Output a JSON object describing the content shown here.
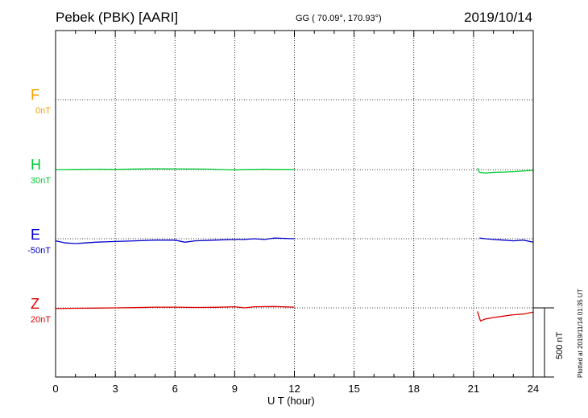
{
  "header": {
    "station": "Pebek (PBK)  [AARI]",
    "coords": "GG ( 70.09°, 170.93°)",
    "date": "2019/10/14"
  },
  "footer_note": "Plotted at 2019/11/14 01:35 UT",
  "chart_data": {
    "type": "line",
    "xlabel": "U T (hour)",
    "xlim": [
      0,
      24
    ],
    "x_ticks": [
      "0",
      "3",
      "6",
      "9",
      "12",
      "15",
      "18",
      "21",
      "24"
    ],
    "scale_bar_label": "500 nT",
    "grid": true,
    "series": [
      {
        "name": "F",
        "baseline": "0nT",
        "color": "#f5a000",
        "segments": []
      },
      {
        "name": "H",
        "baseline": "30nT",
        "color": "#00cc33",
        "segments": [
          {
            "t": [
              0,
              1,
              2,
              3,
              4,
              5,
              6,
              7,
              8,
              8.5,
              9,
              9.5,
              10,
              10.5,
              11,
              12
            ],
            "v": [
              0,
              2,
              3,
              2,
              4,
              6,
              5,
              4,
              3,
              0,
              -2,
              1,
              2,
              3,
              2,
              1
            ]
          },
          {
            "t": [
              21.2,
              21.3,
              21.6,
              22,
              22.5,
              23,
              23.5,
              24
            ],
            "v": [
              10,
              -20,
              -25,
              -20,
              -18,
              -15,
              -10,
              -5
            ]
          }
        ]
      },
      {
        "name": "E",
        "baseline": "-50nT",
        "color": "#0000cc",
        "segments": [
          {
            "t": [
              0,
              0.5,
              1,
              1.5,
              2,
              3,
              4,
              5,
              6,
              6.5,
              7,
              8,
              9,
              9.5,
              10,
              10.5,
              11,
              12
            ],
            "v": [
              -15,
              -30,
              -35,
              -30,
              -25,
              -20,
              -15,
              -10,
              -10,
              -25,
              -15,
              -10,
              -5,
              -5,
              0,
              -5,
              5,
              0
            ]
          },
          {
            "t": [
              21.3,
              21.6,
              22,
              22.5,
              23,
              23.5,
              24
            ],
            "v": [
              5,
              0,
              -5,
              -10,
              -15,
              -10,
              -25
            ]
          }
        ]
      },
      {
        "name": "Z",
        "baseline": "20nT",
        "color": "#dd0000",
        "segments": [
          {
            "t": [
              0,
              1,
              2,
              3,
              4,
              5,
              6,
              7,
              8,
              9,
              9.5,
              10,
              11,
              12
            ],
            "v": [
              -5,
              -3,
              -2,
              0,
              2,
              5,
              5,
              3,
              4,
              8,
              0,
              8,
              10,
              5
            ]
          },
          {
            "t": [
              21.2,
              21.35,
              21.6,
              22,
              22.5,
              23,
              23.5,
              24
            ],
            "v": [
              -25,
              -95,
              -80,
              -70,
              -60,
              -50,
              -45,
              -30
            ]
          }
        ]
      }
    ]
  }
}
